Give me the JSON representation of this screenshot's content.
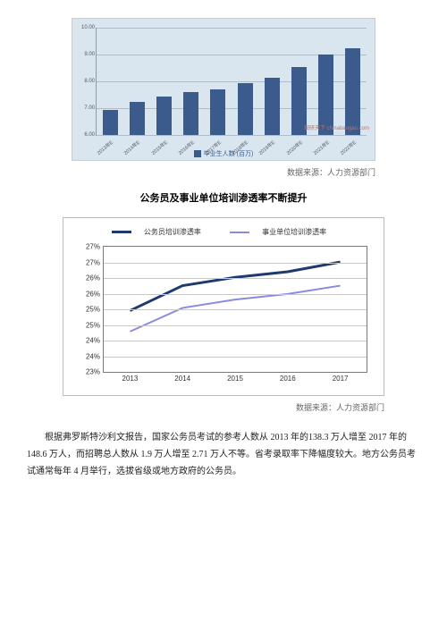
{
  "barChart": {
    "ylim": [
      6,
      10
    ],
    "ytick_step": 1,
    "yticks": [
      "6.00",
      "7.00",
      "8.00",
      "9.00",
      "10.00"
    ],
    "categories": [
      "2013年E",
      "2014年E",
      "2015年E",
      "2016年E",
      "2017年E",
      "2018年E",
      "2019年E",
      "2020年E",
      "2021年E",
      "2022年E"
    ],
    "values": [
      6.95,
      7.25,
      7.45,
      7.6,
      7.7,
      7.95,
      8.15,
      8.55,
      9.0,
      9.25
    ],
    "bar_color": "#3b5b8c",
    "plot_bg": "#d9e6ef",
    "grid_color": "#a9bfd0",
    "label_fontsize": 6,
    "legend_label": "毕业生人数 (百万)",
    "watermark": "观研天下 chinabaogao.com"
  },
  "source1": "数据来源：人力资源部门",
  "section_title": "公务员及事业单位培训渗透率不断提升",
  "lineChart": {
    "legend": [
      {
        "label": "公务员培训渗透率",
        "color": "#1f3a6e",
        "width": 3
      },
      {
        "label": "事业单位培训渗透率",
        "color": "#8a8adf",
        "width": 2
      }
    ],
    "ylim": [
      23,
      27.5
    ],
    "yticks": [
      "23%",
      "24%",
      "24%",
      "25%",
      "25%",
      "26%",
      "26%",
      "27%",
      "27%"
    ],
    "categories": [
      "2013",
      "2014",
      "2015",
      "2016",
      "2017"
    ],
    "series1": [
      25.2,
      26.1,
      26.4,
      26.6,
      26.95
    ],
    "series2": [
      24.45,
      25.3,
      25.6,
      25.8,
      26.1
    ],
    "grid_color": "#c8c8c8",
    "axis_color": "#7a7a7a",
    "label_fontsize": 8
  },
  "source2": "数据来源：人力资源部门",
  "paragraph": "根据弗罗斯特沙利文报告，国家公务员考试的参考人数从 2013 年的138.3 万人增至 2017 年的 148.6 万人，而招聘总人数从 1.9 万人增至 2.71 万人不等。省考录取率下降幅度较大。地方公务员考试通常每年 4 月举行，选拔省级或地方政府的公务员。"
}
